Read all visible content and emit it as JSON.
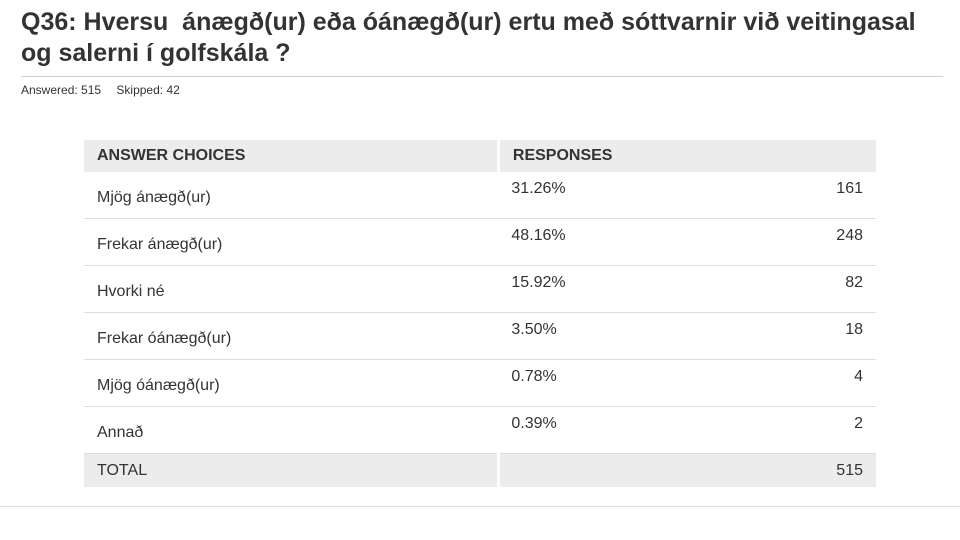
{
  "question": {
    "title": "Q36: Hversu  ánægð(ur) eða óánægð(ur) ertu með sóttvarnir við veitingasal og salerni í golfskála ?",
    "answered_label": "Answered: 515",
    "skipped_label": "Skipped: 42"
  },
  "table": {
    "headers": {
      "choices": "ANSWER CHOICES",
      "responses": "RESPONSES"
    },
    "rows": [
      {
        "choice": "Mjög ánægð(ur)",
        "percent": "31.26%",
        "count": "161"
      },
      {
        "choice": "Frekar ánægð(ur)",
        "percent": "48.16%",
        "count": "248"
      },
      {
        "choice": "Hvorki né",
        "percent": "15.92%",
        "count": "82"
      },
      {
        "choice": "Frekar óánægð(ur)",
        "percent": "3.50%",
        "count": "18"
      },
      {
        "choice": "Mjög óánægð(ur)",
        "percent": "0.78%",
        "count": "4"
      },
      {
        "choice": "Annað",
        "percent": "0.39%",
        "count": "2"
      }
    ],
    "total": {
      "label": "TOTAL",
      "count": "515"
    }
  }
}
